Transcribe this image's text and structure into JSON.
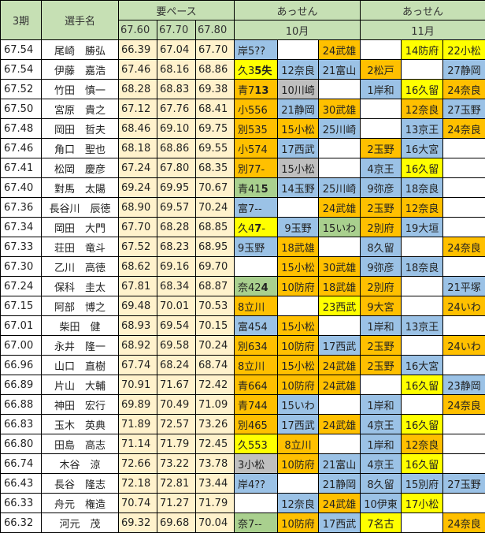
{
  "header": {
    "rank_col": "3期",
    "name_col": "選手名",
    "pace_group": "要ペース",
    "pace_cols": [
      "67.60",
      "67.70",
      "67.80"
    ],
    "assen_groups": [
      {
        "label": "あっせん",
        "month": "10月"
      },
      {
        "label": "あっせん",
        "month": "11月"
      }
    ]
  },
  "colors": {
    "B": "#9bc2e6",
    "O": "#ffc000",
    "Y": "#ffff00",
    "G": "#a9d08e",
    "S": "#bfbfbf",
    "W": "#ffffff",
    "header": "#c6e0b4",
    "pace": "#fff2cc"
  },
  "rows": [
    {
      "score": "67.54",
      "name": "尾崎　勝弘",
      "pace": [
        "66.39",
        "67.04",
        "67.70"
      ],
      "assen": [
        {
          "t": "岸5??",
          "c": "B"
        },
        {
          "t": "",
          "c": "W"
        },
        {
          "t": "24武雄",
          "c": "O"
        },
        {
          "t": "",
          "c": "W"
        },
        {
          "t": "14防府",
          "c": "Y"
        },
        {
          "t": "22小松",
          "c": "Y"
        }
      ]
    },
    {
      "score": "67.54",
      "name": "伊藤　嘉浩",
      "pace": [
        "67.46",
        "68.16",
        "68.86"
      ],
      "assen": [
        {
          "t": "久3",
          "b": "5失",
          "c": "Y"
        },
        {
          "t": "12奈良",
          "c": "B"
        },
        {
          "t": "21富山",
          "c": "B"
        },
        {
          "t": "2松戸",
          "c": "O"
        },
        {
          "t": "",
          "c": "W"
        },
        {
          "t": "27静岡",
          "c": "B"
        }
      ]
    },
    {
      "score": "67.52",
      "name": "竹田　慎一",
      "pace": [
        "68.28",
        "68.83",
        "69.38"
      ],
      "assen": [
        {
          "t": "青7",
          "b": "13",
          "c": "O"
        },
        {
          "t": "10川崎",
          "c": "S"
        },
        {
          "t": "",
          "c": "W"
        },
        {
          "t": "1岸和",
          "c": "B"
        },
        {
          "t": "16久留",
          "c": "Y"
        },
        {
          "t": "24奈良",
          "c": "O"
        }
      ]
    },
    {
      "score": "67.50",
      "name": "宮原　貴之",
      "pace": [
        "67.12",
        "67.76",
        "68.41"
      ],
      "assen": [
        {
          "t": "小556",
          "c": "O"
        },
        {
          "t": "21静岡",
          "c": "B"
        },
        {
          "t": "30武雄",
          "c": "O"
        },
        {
          "t": "",
          "c": "W"
        },
        {
          "t": "12奈良",
          "c": "O"
        },
        {
          "t": "27玉野",
          "c": "B"
        }
      ]
    },
    {
      "score": "67.48",
      "name": "岡田　哲夫",
      "pace": [
        "68.46",
        "69.10",
        "69.75"
      ],
      "assen": [
        {
          "t": "別535",
          "c": "O"
        },
        {
          "t": "15小松",
          "c": "O"
        },
        {
          "t": "25川崎",
          "c": "B"
        },
        {
          "t": "",
          "c": "W"
        },
        {
          "t": "13京王",
          "c": "B"
        },
        {
          "t": "24奈良",
          "c": "O"
        }
      ]
    },
    {
      "score": "67.46",
      "name": "角口　聖也",
      "pace": [
        "68.18",
        "68.86",
        "69.55"
      ],
      "assen": [
        {
          "t": "小574",
          "c": "O"
        },
        {
          "t": "17西武",
          "c": "B"
        },
        {
          "t": "",
          "c": "W"
        },
        {
          "t": "2玉野",
          "c": "O"
        },
        {
          "t": "16大宮",
          "c": "B"
        },
        {
          "t": "",
          "c": "W"
        }
      ]
    },
    {
      "score": "67.41",
      "name": "松岡　慶彦",
      "pace": [
        "67.24",
        "67.80",
        "68.35"
      ],
      "assen": [
        {
          "t": "別77-",
          "c": "O"
        },
        {
          "t": "15小松",
          "c": "S"
        },
        {
          "t": "",
          "c": "W"
        },
        {
          "t": "4京王",
          "c": "B"
        },
        {
          "t": "16久留",
          "c": "Y"
        },
        {
          "t": "",
          "c": "W"
        }
      ]
    },
    {
      "score": "67.40",
      "name": "對馬　太陽",
      "pace": [
        "69.24",
        "69.95",
        "70.67"
      ],
      "assen": [
        {
          "t": "青41",
          "b": "5",
          "c": "G"
        },
        {
          "t": "14玉野",
          "c": "B"
        },
        {
          "t": "25川崎",
          "c": "B"
        },
        {
          "t": "9弥彦",
          "c": "B"
        },
        {
          "t": "18奈良",
          "c": "B"
        },
        {
          "t": "",
          "c": "W"
        }
      ]
    },
    {
      "score": "67.36",
      "name": "長谷川　辰徳",
      "pace": [
        "68.90",
        "69.57",
        "70.24"
      ],
      "assen": [
        {
          "t": "富7--",
          "c": "B"
        },
        {
          "t": "",
          "c": "W"
        },
        {
          "t": "24武雄",
          "c": "O"
        },
        {
          "t": "2玉野",
          "c": "O"
        },
        {
          "t": "12奈良",
          "c": "O"
        },
        {
          "t": "",
          "c": "W"
        }
      ]
    },
    {
      "score": "67.34",
      "name": "岡田　大門",
      "pace": [
        "67.70",
        "68.28",
        "68.85"
      ],
      "assen": [
        {
          "t": "久4",
          "b": "7",
          "t2": "-",
          "c": "Y"
        },
        {
          "t": "9玉野",
          "c": "B"
        },
        {
          "t": "15いわ",
          "c": "G"
        },
        {
          "t": "2別府",
          "c": "O"
        },
        {
          "t": "19大垣",
          "c": "B"
        },
        {
          "t": "",
          "c": "W"
        }
      ]
    },
    {
      "score": "67.33",
      "name": "荘田　竜斗",
      "pace": [
        "67.52",
        "68.23",
        "68.95"
      ],
      "assen": [
        {
          "t": "9玉野",
          "c": "B"
        },
        {
          "t": "18武雄",
          "c": "O"
        },
        {
          "t": "",
          "c": "W"
        },
        {
          "t": "8久留",
          "c": "B"
        },
        {
          "t": "",
          "c": "W"
        },
        {
          "t": "24奈良",
          "c": "O"
        }
      ]
    },
    {
      "score": "67.30",
      "name": "乙川　高徳",
      "pace": [
        "68.62",
        "69.16",
        "69.70"
      ],
      "assen": [
        {
          "t": "",
          "c": "W"
        },
        {
          "t": "15小松",
          "c": "O"
        },
        {
          "t": "30武雄",
          "c": "O"
        },
        {
          "t": "9弥彦",
          "c": "B"
        },
        {
          "t": "18奈良",
          "c": "B"
        },
        {
          "t": "",
          "c": "W"
        }
      ]
    },
    {
      "score": "67.24",
      "name": "保科　圭太",
      "pace": [
        "67.81",
        "68.34",
        "68.87"
      ],
      "assen": [
        {
          "t": "奈42",
          "b": "4",
          "c": "G"
        },
        {
          "t": "10防府",
          "c": "O"
        },
        {
          "t": "18武雄",
          "c": "O"
        },
        {
          "t": "2別府",
          "c": "O"
        },
        {
          "t": "",
          "c": "W"
        },
        {
          "t": "21平塚",
          "c": "B"
        }
      ]
    },
    {
      "score": "67.15",
      "name": "阿部　博之",
      "pace": [
        "69.48",
        "70.01",
        "70.53"
      ],
      "assen": [
        {
          "t": "8立川",
          "c": "O"
        },
        {
          "t": "",
          "c": "W"
        },
        {
          "t": "23西武",
          "c": "Y"
        },
        {
          "t": "9大宮",
          "c": "O"
        },
        {
          "t": "",
          "c": "W"
        },
        {
          "t": "24いわ",
          "c": "O"
        }
      ]
    },
    {
      "score": "67.01",
      "name": "柴田　健",
      "pace": [
        "68.93",
        "69.54",
        "70.15"
      ],
      "assen": [
        {
          "t": "富454",
          "c": "B"
        },
        {
          "t": "15小松",
          "c": "O"
        },
        {
          "t": "",
          "c": "W"
        },
        {
          "t": "1岸和",
          "c": "B"
        },
        {
          "t": "13京王",
          "c": "B"
        },
        {
          "t": "",
          "c": "W"
        }
      ]
    },
    {
      "score": "67.00",
      "name": "永井　隆一",
      "pace": [
        "68.92",
        "69.58",
        "70.24"
      ],
      "assen": [
        {
          "t": "別634",
          "c": "O"
        },
        {
          "t": "10防府",
          "c": "O"
        },
        {
          "t": "17西武",
          "c": "B"
        },
        {
          "t": "2玉野",
          "c": "O"
        },
        {
          "t": "",
          "c": "W"
        },
        {
          "t": "24いわ",
          "c": "O"
        }
      ]
    },
    {
      "score": "66.96",
      "name": "山口　直樹",
      "pace": [
        "67.74",
        "68.24",
        "68.74"
      ],
      "assen": [
        {
          "t": "8立川",
          "c": "O"
        },
        {
          "t": "15小松",
          "c": "O"
        },
        {
          "t": "24武雄",
          "c": "O"
        },
        {
          "t": "2玉野",
          "c": "O"
        },
        {
          "t": "16大宮",
          "c": "B"
        },
        {
          "t": "",
          "c": "W"
        }
      ]
    },
    {
      "score": "66.89",
      "name": "片山　大輔",
      "pace": [
        "70.91",
        "71.67",
        "72.42"
      ],
      "assen": [
        {
          "t": "青664",
          "c": "O"
        },
        {
          "t": "10防府",
          "c": "O"
        },
        {
          "t": "24武雄",
          "c": "O"
        },
        {
          "t": "",
          "c": "W"
        },
        {
          "t": "16久留",
          "c": "Y"
        },
        {
          "t": "23静岡",
          "c": "B"
        }
      ]
    },
    {
      "score": "66.88",
      "name": "神田　宏行",
      "pace": [
        "69.89",
        "70.49",
        "71.09"
      ],
      "assen": [
        {
          "t": "青744",
          "c": "O"
        },
        {
          "t": "15いわ",
          "c": "B"
        },
        {
          "t": "",
          "c": "W"
        },
        {
          "t": "1岸和",
          "c": "B"
        },
        {
          "t": "",
          "c": "W"
        },
        {
          "t": "24奈良",
          "c": "O"
        }
      ]
    },
    {
      "score": "66.83",
      "name": "玉木　英典",
      "pace": [
        "71.89",
        "72.57",
        "73.26"
      ],
      "assen": [
        {
          "t": "別465",
          "c": "O"
        },
        {
          "t": "17西武",
          "c": "B"
        },
        {
          "t": "24武雄",
          "c": "O"
        },
        {
          "t": "4京王",
          "c": "B"
        },
        {
          "t": "16久留",
          "c": "Y"
        },
        {
          "t": "",
          "c": "W"
        }
      ]
    },
    {
      "score": "66.80",
      "name": "田島　高志",
      "pace": [
        "71.14",
        "71.79",
        "72.45"
      ],
      "assen": [
        {
          "t": "久553",
          "c": "Y"
        },
        {
          "t": "8立川",
          "c": "O"
        },
        {
          "t": "",
          "c": "W"
        },
        {
          "t": "1岸和",
          "c": "B"
        },
        {
          "t": "12奈良",
          "c": "O"
        },
        {
          "t": "",
          "c": "W"
        }
      ]
    },
    {
      "score": "66.74",
      "name": "木谷　涼",
      "pace": [
        "72.66",
        "73.22",
        "73.78"
      ],
      "assen": [
        {
          "t": "3小松",
          "c": "S"
        },
        {
          "t": "10防府",
          "c": "O"
        },
        {
          "t": "21富山",
          "c": "B"
        },
        {
          "t": "4京王",
          "c": "B"
        },
        {
          "t": "16久留",
          "c": "Y"
        },
        {
          "t": "",
          "c": "W"
        }
      ]
    },
    {
      "score": "66.43",
      "name": "長谷　隆志",
      "pace": [
        "72.18",
        "72.81",
        "73.44"
      ],
      "assen": [
        {
          "t": "岸4??",
          "c": "B"
        },
        {
          "t": "",
          "c": "W"
        },
        {
          "t": "21静岡",
          "c": "B"
        },
        {
          "t": "8久留",
          "c": "B"
        },
        {
          "t": "15別府",
          "c": "B"
        },
        {
          "t": "27玉野",
          "c": "B"
        }
      ]
    },
    {
      "score": "66.33",
      "name": "舟元　権造",
      "pace": [
        "70.74",
        "71.27",
        "71.79"
      ],
      "assen": [
        {
          "t": "",
          "c": "W"
        },
        {
          "t": "12奈良",
          "c": "B"
        },
        {
          "t": "24武雄",
          "c": "O"
        },
        {
          "t": "10伊東",
          "c": "B"
        },
        {
          "t": "17小松",
          "c": "Y"
        },
        {
          "t": "",
          "c": "W"
        }
      ]
    },
    {
      "score": "66.32",
      "name": "河元　茂",
      "pace": [
        "69.32",
        "69.68",
        "70.04"
      ],
      "assen": [
        {
          "t": "奈7--",
          "c": "G"
        },
        {
          "t": "10防府",
          "c": "O"
        },
        {
          "t": "17西武",
          "c": "B"
        },
        {
          "t": "7名古",
          "c": "Y"
        },
        {
          "t": "",
          "c": "W"
        },
        {
          "t": "24奈良",
          "c": "O"
        }
      ]
    }
  ]
}
